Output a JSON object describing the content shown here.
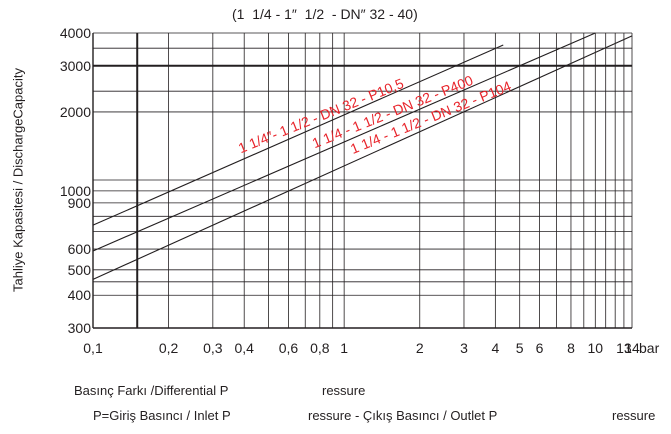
{
  "chart_data": {
    "type": "line",
    "title": "(1  1/4 - 1″  1/2  - DN″ 32 - 40)",
    "ylabel": "Tahliye Kapasitesi / DischargeCapacity",
    "xlabel_line1": [
      "Basınç Farkı /Differential P",
      "ressure"
    ],
    "xlabel_line2": [
      "P=Giriş Basıncı / Inlet P",
      "ressure - Çıkış Basıncı / Outlet P",
      "ressure"
    ],
    "x_scale": "log",
    "y_scale": "log",
    "xlim": [
      0.1,
      14
    ],
    "ylim": [
      300,
      4000
    ],
    "x_ticks": [
      {
        "v": 0.1,
        "t": "0,1"
      },
      {
        "v": 0.2,
        "t": "0,2"
      },
      {
        "v": 0.3,
        "t": "0,3"
      },
      {
        "v": 0.4,
        "t": "0,4"
      },
      {
        "v": 0.6,
        "t": "0,6"
      },
      {
        "v": 0.8,
        "t": "0,8"
      },
      {
        "v": 1,
        "t": "1"
      },
      {
        "v": 2,
        "t": "2"
      },
      {
        "v": 3,
        "t": "3"
      },
      {
        "v": 4,
        "t": "4"
      },
      {
        "v": 5,
        "t": "5"
      },
      {
        "v": 6,
        "t": "6"
      },
      {
        "v": 8,
        "t": "8"
      },
      {
        "v": 10,
        "t": "10"
      },
      {
        "v": 13,
        "t": "13"
      },
      {
        "v": 14,
        "t": "14"
      }
    ],
    "x_unit": "bar",
    "y_ticks": [
      {
        "v": 300,
        "t": "300"
      },
      {
        "v": 400,
        "t": "400"
      },
      {
        "v": 500,
        "t": "500"
      },
      {
        "v": 600,
        "t": "600"
      },
      {
        "v": 900,
        "t": "900"
      },
      {
        "v": 1000,
        "t": "1000"
      },
      {
        "v": 2000,
        "t": "2000"
      },
      {
        "v": 3000,
        "t": "3000"
      },
      {
        "v": 4000,
        "t": "4000"
      }
    ],
    "x_minor_grid": [
      0.1,
      0.15,
      0.2,
      0.3,
      0.4,
      0.5,
      0.6,
      0.7,
      0.8,
      0.9,
      1,
      2,
      3,
      4,
      5,
      6,
      7,
      8,
      9,
      10,
      11,
      12,
      13,
      14
    ],
    "y_minor_grid": [
      300,
      400,
      450,
      500,
      600,
      700,
      800,
      900,
      1000,
      1100,
      2000,
      2400,
      3000,
      3500,
      4000
    ],
    "x_bold_lines": [
      0.15
    ],
    "y_bold_lines": [
      3000
    ],
    "series": [
      {
        "name": "1  1/4″- 1  1/2  - DN 32 - P10,5",
        "x": [
          0.1,
          4.3
        ],
        "y": [
          740,
          3600
        ],
        "label_at": 0.56,
        "label_angle": -22
      },
      {
        "name": "1  1/4 - 1  1/2  - DN 32 - P400",
        "x": [
          0.1,
          10
        ],
        "y": [
          590,
          4000
        ],
        "label_at": 0.6,
        "label_angle": -22
      },
      {
        "name": "1  1/4 - 1  1/2  - DN 32 - P104",
        "x": [
          0.1,
          14
        ],
        "y": [
          460,
          3900
        ],
        "label_at": 0.63,
        "label_angle": -22
      }
    ],
    "colors": {
      "axis": "#231f20",
      "series": "#231f20",
      "series_label": "#e8242b"
    },
    "grid": true
  }
}
